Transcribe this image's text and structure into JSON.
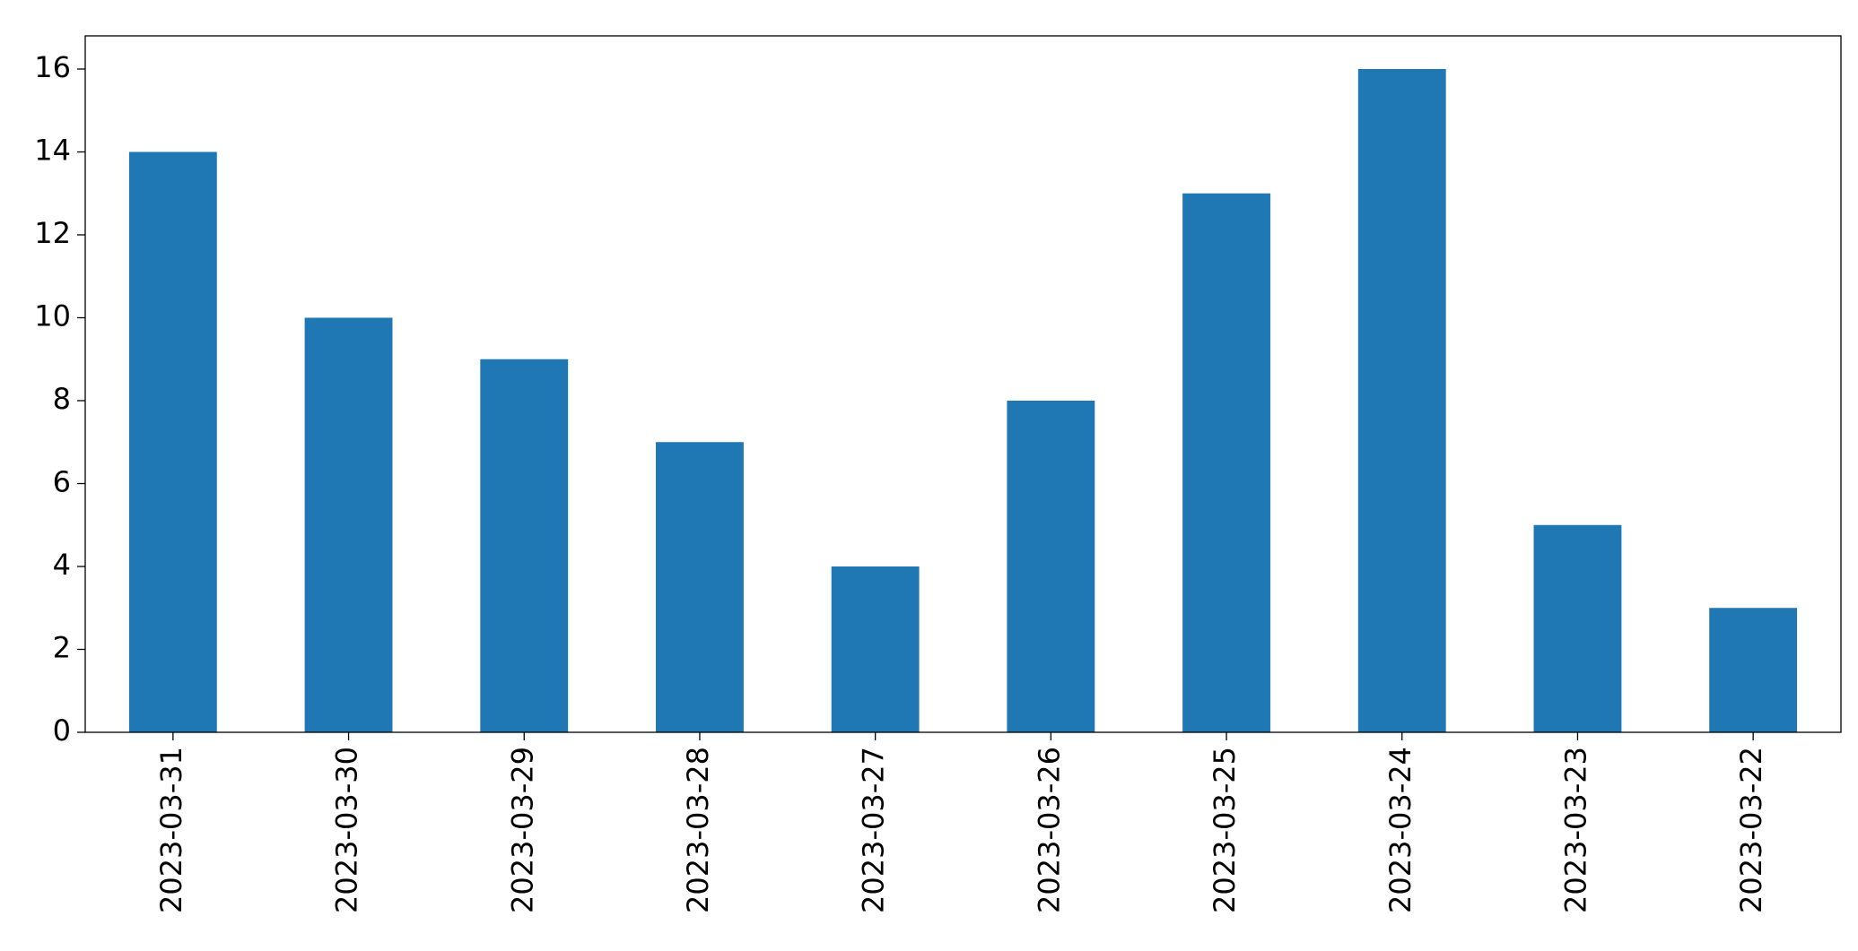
{
  "chart_data": {
    "type": "bar",
    "categories": [
      "2023-03-31",
      "2023-03-30",
      "2023-03-29",
      "2023-03-28",
      "2023-03-27",
      "2023-03-26",
      "2023-03-25",
      "2023-03-24",
      "2023-03-23",
      "2023-03-22"
    ],
    "values": [
      14,
      10,
      9,
      7,
      4,
      8,
      13,
      16,
      5,
      3
    ],
    "color": "#1f77b4",
    "ylim": [
      0,
      16.8
    ],
    "yticks": [
      0,
      2,
      4,
      6,
      8,
      10,
      12,
      14,
      16
    ],
    "grid": false
  }
}
